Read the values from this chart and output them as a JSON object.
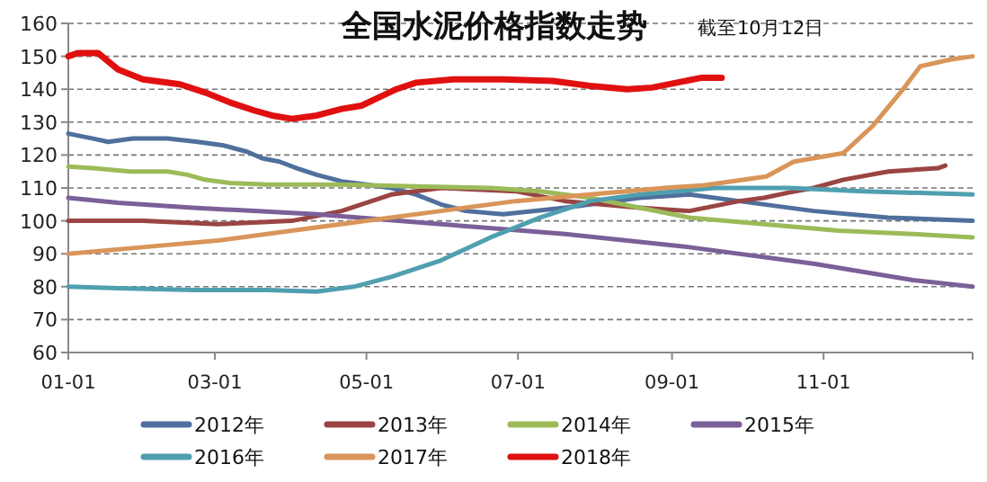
{
  "chart_data": {
    "type": "line",
    "title": "全国水泥价格指数走势",
    "subtitle": "截至10月12日",
    "xlim": [
      "--01-01",
      "--12-31"
    ],
    "xticks": [
      {
        "value": "--01-01",
        "label": "01-01"
      },
      {
        "value": "--03-01",
        "label": "03-01"
      },
      {
        "value": "--05-01",
        "label": "05-01"
      },
      {
        "value": "--07-01",
        "label": "07-01"
      },
      {
        "value": "--09-01",
        "label": "09-01"
      },
      {
        "value": "--11-01",
        "label": "11-01"
      },
      {
        "value": "--12-31",
        "label": null
      }
    ],
    "ylim": [
      60,
      160
    ],
    "yticks": [
      60,
      70,
      80,
      90,
      100,
      110,
      120,
      130,
      140,
      150,
      160
    ],
    "grid": "y",
    "legend": "bottom",
    "marker": "none",
    "line_style": "solid",
    "series": [
      {
        "name": "2012年",
        "color": "#4f6f9c",
        "x": [
          "--01-01",
          "--01-11",
          "--01-17",
          "--01-27",
          "--02-10",
          "--02-22",
          "--03-04",
          "--03-14",
          "--03-20",
          "--03-27",
          "--04-03",
          "--04-11",
          "--04-21",
          "--05-01",
          "--05-11",
          "--05-21",
          "--05-31",
          "--06-10",
          "--06-25",
          "--07-20",
          "--08-19",
          "--09-08",
          "--09-28",
          "--10-28",
          "--11-27",
          "--12-31"
        ],
        "values": [
          126.5,
          125,
          124,
          125,
          125,
          124,
          123,
          121,
          119,
          118,
          116,
          114,
          112,
          111,
          110,
          108,
          105,
          103,
          102,
          104,
          107,
          108,
          106,
          103,
          101,
          100
        ]
      },
      {
        "name": "2013年",
        "color": "#9a4444",
        "x": [
          "--01-01",
          "--01-31",
          "--03-02",
          "--04-01",
          "--04-21",
          "--05-11",
          "--05-31",
          "--06-30",
          "--07-20",
          "--08-19",
          "--09-08",
          "--09-28",
          "--10-08",
          "--10-18",
          "--10-28",
          "--11-09",
          "--11-27",
          "--12-17",
          "--12-20"
        ],
        "values": [
          100,
          100,
          99,
          100,
          103,
          108,
          110,
          109,
          106,
          104,
          103,
          106,
          107,
          108.6,
          110,
          112.5,
          115,
          116,
          116.8
        ]
      },
      {
        "name": "2014年",
        "color": "#9bbb59",
        "x": [
          "--01-01",
          "--01-11",
          "--01-26",
          "--02-10",
          "--02-18",
          "--02-25",
          "--03-07",
          "--03-22",
          "--04-21",
          "--05-21",
          "--06-20",
          "--07-10",
          "--07-30",
          "--08-19",
          "--09-08",
          "--10-08",
          "--11-07",
          "--12-07",
          "--12-31"
        ],
        "values": [
          116.5,
          116,
          115,
          115,
          114,
          112.5,
          111.5,
          111,
          111,
          110.5,
          110,
          109,
          107,
          104,
          101,
          99,
          97,
          96,
          95
        ]
      },
      {
        "name": "2015年",
        "color": "#7a5f98",
        "x": [
          "--01-01",
          "--01-21",
          "--02-20",
          "--04-11",
          "--05-31",
          "--07-20",
          "--09-08",
          "--10-28",
          "--12-07",
          "--12-31"
        ],
        "values": [
          107,
          105.5,
          104,
          102,
          99,
          96,
          92,
          87,
          82,
          80
        ]
      },
      {
        "name": "2016年",
        "color": "#4f9fb0",
        "x": [
          "--01-01",
          "--01-21",
          "--02-20",
          "--03-22",
          "--04-11",
          "--04-26",
          "--05-11",
          "--05-31",
          "--06-20",
          "--07-10",
          "--07-30",
          "--08-19",
          "--09-18",
          "--10-18",
          "--11-17",
          "--12-31"
        ],
        "values": [
          80,
          79.5,
          79,
          79,
          78.5,
          80,
          83,
          88,
          95,
          101,
          106,
          108,
          110,
          110,
          109,
          108
        ]
      },
      {
        "name": "2017年",
        "color": "#d9955a",
        "x": [
          "--01-01",
          "--01-31",
          "--03-02",
          "--04-01",
          "--05-01",
          "--05-31",
          "--06-30",
          "--07-30",
          "--08-29",
          "--09-14",
          "--10-09",
          "--10-20",
          "--11-09",
          "--11-21",
          "--12-03",
          "--12-10",
          "--12-22",
          "--12-31"
        ],
        "values": [
          90,
          92,
          94,
          97,
          100,
          103,
          106,
          108,
          110,
          110.8,
          113.5,
          118,
          120.6,
          129,
          140,
          147,
          149,
          150
        ]
      },
      {
        "name": "2018年",
        "color": "#e01010",
        "x": [
          "--01-01",
          "--01-05",
          "--01-13",
          "--01-21",
          "--01-31",
          "--02-15",
          "--02-25",
          "--03-07",
          "--03-17",
          "--03-24",
          "--04-01",
          "--04-11",
          "--04-21",
          "--04-29",
          "--05-06",
          "--05-13",
          "--05-21",
          "--06-05",
          "--06-25",
          "--07-15",
          "--07-30",
          "--08-14",
          "--08-24",
          "--09-03",
          "--09-13",
          "--09-21"
        ],
        "values": [
          150,
          151,
          151,
          146,
          143,
          141.5,
          139,
          136,
          133.5,
          132,
          131,
          132,
          134,
          135,
          137.5,
          140,
          142,
          143,
          143,
          142.5,
          141,
          140,
          140.5,
          142,
          143.5,
          143.5
        ]
      }
    ]
  }
}
